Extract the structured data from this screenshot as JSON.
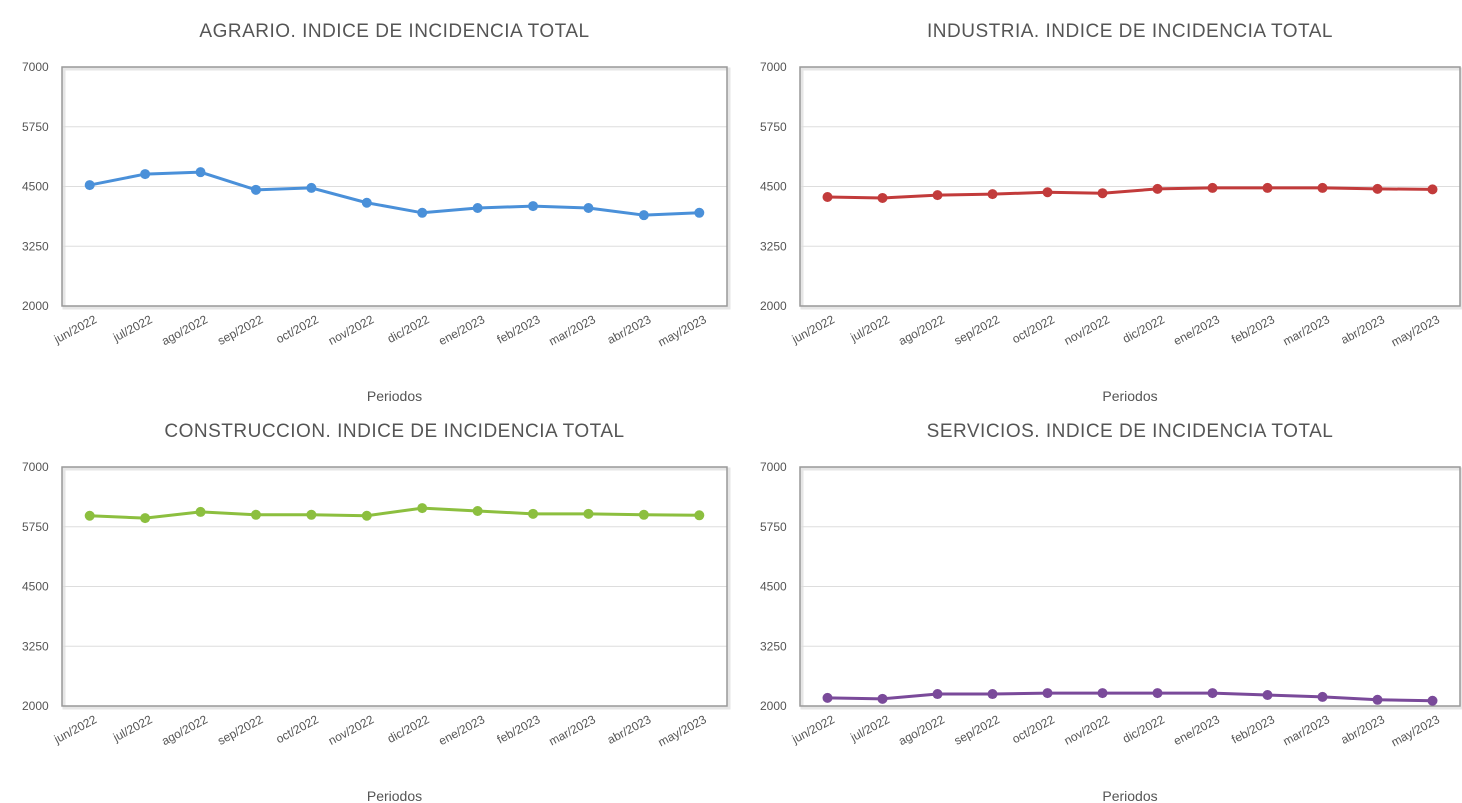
{
  "chart_data": [
    {
      "type": "line",
      "title": "AGRARIO. INDICE DE INCIDENCIA TOTAL",
      "x_label": "Periodos",
      "categories": [
        "jun/2022",
        "jul/2022",
        "ago/2022",
        "sep/2022",
        "oct/2022",
        "nov/2022",
        "dic/2022",
        "ene/2023",
        "feb/2023",
        "mar/2023",
        "abr/2023",
        "may/2023"
      ],
      "series": [
        {
          "color": "#4a90d9",
          "values": [
            4530,
            4760,
            4800,
            4430,
            4470,
            4160,
            3950,
            4050,
            4090,
            4050,
            3900,
            3950
          ]
        }
      ],
      "ylim": [
        2000,
        7000
      ],
      "yticks": [
        2000,
        3250,
        4500,
        5750,
        7000
      ],
      "grid": true
    },
    {
      "type": "line",
      "title": "INDUSTRIA. INDICE DE INCIDENCIA TOTAL",
      "x_label": "Periodos",
      "categories": [
        "jun/2022",
        "jul/2022",
        "ago/2022",
        "sep/2022",
        "oct/2022",
        "nov/2022",
        "dic/2022",
        "ene/2023",
        "feb/2023",
        "mar/2023",
        "abr/2023",
        "may/2023"
      ],
      "series": [
        {
          "color": "#c23b3b",
          "values": [
            4280,
            4260,
            4320,
            4340,
            4380,
            4360,
            4450,
            4470,
            4470,
            4470,
            4450,
            4440
          ]
        }
      ],
      "ylim": [
        2000,
        7000
      ],
      "yticks": [
        2000,
        3250,
        4500,
        5750,
        7000
      ],
      "grid": true
    },
    {
      "type": "line",
      "title": "CONSTRUCCION. INDICE DE INCIDENCIA TOTAL",
      "x_label": "Periodos",
      "categories": [
        "jun/2022",
        "jul/2022",
        "ago/2022",
        "sep/2022",
        "oct/2022",
        "nov/2022",
        "dic/2022",
        "ene/2023",
        "feb/2023",
        "mar/2023",
        "abr/2023",
        "may/2023"
      ],
      "series": [
        {
          "color": "#8cbf3f",
          "values": [
            5980,
            5930,
            6060,
            6000,
            6000,
            5980,
            6140,
            6080,
            6020,
            6020,
            6000,
            5990
          ]
        }
      ],
      "ylim": [
        2000,
        7000
      ],
      "yticks": [
        2000,
        3250,
        4500,
        5750,
        7000
      ],
      "grid": true
    },
    {
      "type": "line",
      "title": "SERVICIOS. INDICE DE INCIDENCIA TOTAL",
      "x_label": "Periodos",
      "categories": [
        "jun/2022",
        "jul/2022",
        "ago/2022",
        "sep/2022",
        "oct/2022",
        "nov/2022",
        "dic/2022",
        "ene/2023",
        "feb/2023",
        "mar/2023",
        "abr/2023",
        "may/2023"
      ],
      "series": [
        {
          "color": "#7a4a9a",
          "values": [
            2170,
            2150,
            2250,
            2250,
            2270,
            2270,
            2270,
            2270,
            2230,
            2190,
            2130,
            2110
          ]
        }
      ],
      "ylim": [
        2000,
        7000
      ],
      "yticks": [
        2000,
        3250,
        4500,
        5750,
        7000
      ],
      "grid": true
    }
  ]
}
